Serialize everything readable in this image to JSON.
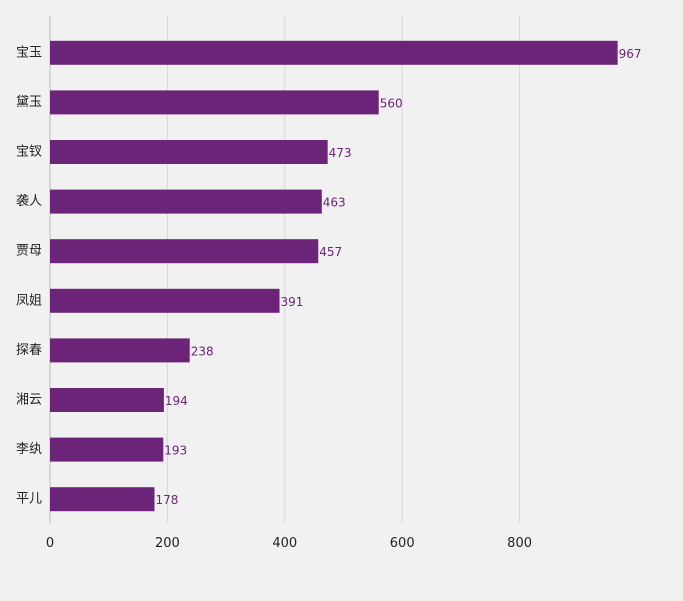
{
  "chart_data": {
    "type": "bar",
    "orientation": "horizontal",
    "title": "",
    "xlabel": "",
    "ylabel": "",
    "categories": [
      "宝玉",
      "黛玉",
      "宝钗",
      "袭人",
      "贾母",
      "凤姐",
      "探春",
      "湘云",
      "李纨",
      "平儿"
    ],
    "values": [
      967,
      560,
      473,
      463,
      457,
      391,
      238,
      194,
      193,
      178
    ],
    "xlim": [
      0,
      1000
    ],
    "xticks": [
      0,
      200,
      400,
      600,
      800
    ],
    "xtick_labels": [
      "0",
      "200",
      "400",
      "600",
      "800"
    ],
    "grid": "vertical",
    "legend": "none",
    "colors": {
      "bar": "#6c2479",
      "data_label": "#6c2479",
      "gridline": "#d9d9d9",
      "background": "#f1f1f1",
      "text": "#222222"
    }
  }
}
